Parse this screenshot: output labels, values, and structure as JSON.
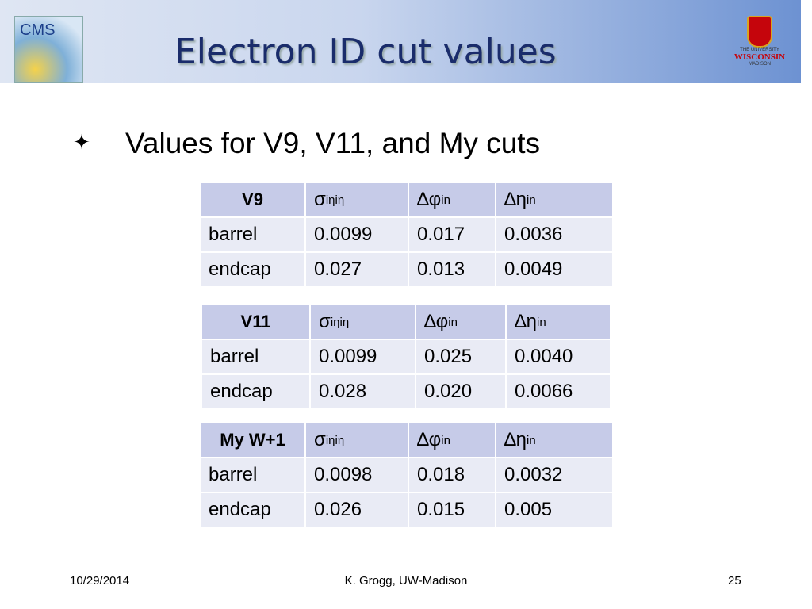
{
  "header": {
    "title": "Electron ID cut values",
    "left_logo": "CMS",
    "right_logo": {
      "line1": "THE UNIVERSITY",
      "line2": "WISCONSIN",
      "line3": "MADISON"
    }
  },
  "bullet": "Values for V9, V11, and My cuts",
  "tables": [
    {
      "header": [
        {
          "text": "V9"
        },
        {
          "symbol": "σ",
          "sub": "iηiη"
        },
        {
          "symbol": "∆φ",
          "sub": "in"
        },
        {
          "symbol": "∆η",
          "sub": "in"
        }
      ],
      "rows": [
        [
          "barrel",
          "0.0099",
          "0.017",
          "0.0036"
        ],
        [
          "endcap",
          "0.027",
          "0.013",
          "0.0049"
        ]
      ]
    },
    {
      "header": [
        {
          "text": "V11"
        },
        {
          "symbol": "σ",
          "sub": "iηiη"
        },
        {
          "symbol": "∆φ",
          "sub": "in"
        },
        {
          "symbol": "∆η",
          "sub": "in"
        }
      ],
      "rows": [
        [
          "barrel",
          "0.0099",
          "0.025",
          "0.0040"
        ],
        [
          "endcap",
          "0.028",
          "0.020",
          "0.0066"
        ]
      ]
    },
    {
      "header": [
        {
          "text": "My W+1"
        },
        {
          "symbol": "σ",
          "sub": "iηiη"
        },
        {
          "symbol": "∆φ",
          "sub": "in"
        },
        {
          "symbol": "∆η",
          "sub": "in"
        }
      ],
      "rows": [
        [
          "barrel",
          "0.0098",
          "0.018",
          "0.0032"
        ],
        [
          "endcap",
          "0.026",
          "0.015",
          "0.005"
        ]
      ]
    }
  ],
  "footer": {
    "date": "10/29/2014",
    "author": "K. Grogg, UW-Madison",
    "page": "25"
  }
}
